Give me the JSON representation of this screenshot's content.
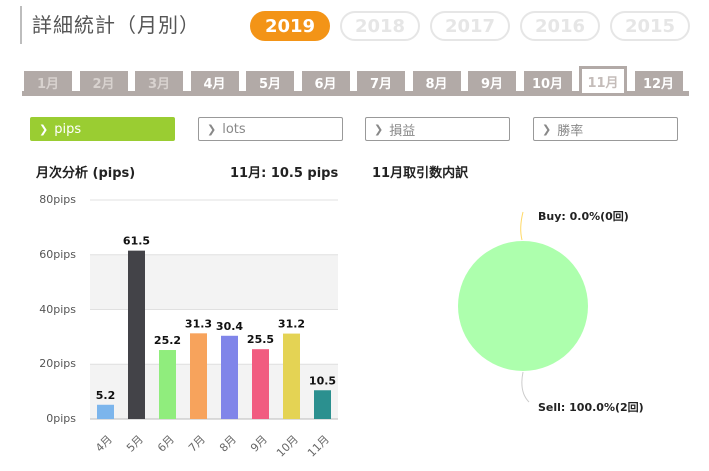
{
  "header": {
    "title": "詳細統計（月別）"
  },
  "years": [
    {
      "label": "2019",
      "active": true
    },
    {
      "label": "2018",
      "active": false
    },
    {
      "label": "2017",
      "active": false
    },
    {
      "label": "2016",
      "active": false
    },
    {
      "label": "2015",
      "active": false
    }
  ],
  "months": [
    {
      "label": "1月",
      "state": "dim"
    },
    {
      "label": "2月",
      "state": "dim"
    },
    {
      "label": "3月",
      "state": "dim"
    },
    {
      "label": "4月",
      "state": "normal"
    },
    {
      "label": "5月",
      "state": "normal"
    },
    {
      "label": "6月",
      "state": "normal"
    },
    {
      "label": "7月",
      "state": "normal"
    },
    {
      "label": "8月",
      "state": "normal"
    },
    {
      "label": "9月",
      "state": "normal"
    },
    {
      "label": "10月",
      "state": "normal"
    },
    {
      "label": "11月",
      "state": "active"
    },
    {
      "label": "12月",
      "state": "normal"
    }
  ],
  "metrics": [
    {
      "label": "pips",
      "active": true
    },
    {
      "label": "lots",
      "active": false
    },
    {
      "label": "損益",
      "active": false
    },
    {
      "label": "勝率",
      "active": false
    }
  ],
  "bar_section": {
    "title": "月次分析 (pips)",
    "summary": "11月:  10.5 pips"
  },
  "pie_section": {
    "title": "11月取引数内訳"
  },
  "colors": {
    "accent": "#f39417",
    "active_metric": "#9acd32",
    "tab": "#b2aaa7"
  },
  "chart_data": [
    {
      "type": "bar",
      "categories": [
        "4月",
        "5月",
        "6月",
        "7月",
        "8月",
        "9月",
        "10月",
        "11月"
      ],
      "values": [
        5.2,
        61.5,
        25.2,
        31.3,
        30.4,
        25.5,
        31.2,
        10.5
      ],
      "value_labels": [
        "5.2",
        "61.5",
        "25.2",
        "31.3",
        "30.4",
        "25.5",
        "31.2",
        "10.5"
      ],
      "colors": [
        "#7cb5ec",
        "#434348",
        "#90ed7d",
        "#f7a35c",
        "#8085e9",
        "#f15c80",
        "#e4d354",
        "#2b908f"
      ],
      "yticks": [
        "0pips",
        "20pips",
        "40pips",
        "60pips",
        "80pips"
      ],
      "ylim": [
        0,
        80
      ],
      "grid": true
    },
    {
      "type": "pie",
      "slices": [
        {
          "label": "Buy: 0.0%(0回)",
          "value": 0,
          "color": "#ffd966"
        },
        {
          "label": "Sell: 100.0%(2回)",
          "value": 100,
          "color": "#adffad"
        }
      ]
    }
  ]
}
